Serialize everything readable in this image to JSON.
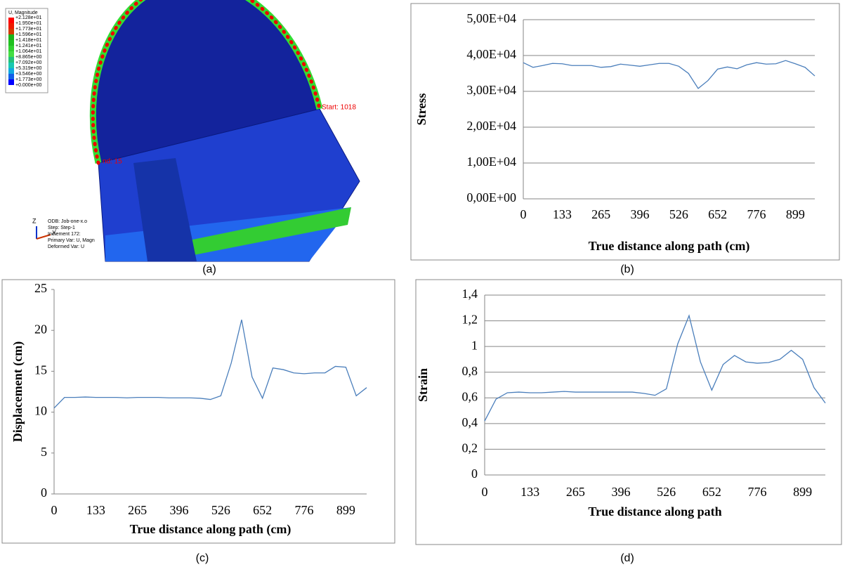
{
  "chart_data": [
    {
      "type": "line",
      "y_axis_label": "Stress",
      "x_axis_label": "True distance along path (cm)",
      "categories": [
        0,
        null,
        null,
        null,
        133,
        null,
        null,
        null,
        265,
        null,
        null,
        null,
        396,
        null,
        null,
        null,
        526,
        null,
        null,
        null,
        652,
        null,
        null,
        null,
        776,
        null,
        null,
        null,
        899,
        null,
        null
      ],
      "series": [
        {
          "color": "#4a7ebb",
          "values": [
            38000,
            36700,
            37200,
            37800,
            37700,
            37200,
            37200,
            37200,
            36700,
            36900,
            37600,
            37300,
            37000,
            37400,
            37800,
            37800,
            37000,
            35000,
            30800,
            33000,
            36200,
            36800,
            36300,
            37400,
            38000,
            37600,
            37700,
            38600,
            37700,
            36700,
            34300
          ]
        }
      ],
      "ylim": [
        0,
        50000
      ],
      "yticks": [
        {
          "value": 0,
          "label": "0,00E+00"
        },
        {
          "value": 10000,
          "label": "1,00E+04"
        },
        {
          "value": 20000,
          "label": "2,00E+04"
        },
        {
          "value": 30000,
          "label": "3,00E+04"
        },
        {
          "value": 40000,
          "label": "4,00E+04"
        },
        {
          "value": 50000,
          "label": "5,00E+04"
        }
      ],
      "grid": true
    },
    {
      "type": "line",
      "y_axis_label": "Displacement (cm)",
      "x_axis_label": "True distance along path (cm)",
      "categories": [
        0,
        null,
        null,
        null,
        133,
        null,
        null,
        null,
        265,
        null,
        null,
        null,
        396,
        null,
        null,
        null,
        526,
        null,
        null,
        null,
        652,
        null,
        null,
        null,
        776,
        null,
        null,
        null,
        899,
        null,
        null
      ],
      "series": [
        {
          "color": "#4a7ebb",
          "values": [
            10.5,
            11.8,
            11.8,
            11.85,
            11.8,
            11.8,
            11.8,
            11.75,
            11.8,
            11.8,
            11.8,
            11.75,
            11.75,
            11.75,
            11.7,
            11.55,
            12.0,
            16.0,
            21.3,
            14.3,
            11.7,
            15.4,
            15.2,
            14.8,
            14.7,
            14.8,
            14.8,
            15.6,
            15.5,
            12.0,
            13.0
          ]
        }
      ],
      "ylim": [
        0,
        25
      ],
      "yticks": [
        0,
        5,
        10,
        15,
        20,
        25
      ],
      "grid": false
    },
    {
      "type": "line",
      "y_axis_label": "Strain",
      "x_axis_label": "True distance along path",
      "categories": [
        0,
        null,
        null,
        null,
        133,
        null,
        null,
        null,
        265,
        null,
        null,
        null,
        396,
        null,
        null,
        null,
        526,
        null,
        null,
        null,
        652,
        null,
        null,
        null,
        776,
        null,
        null,
        null,
        899,
        null,
        null
      ],
      "series": [
        {
          "color": "#4a7ebb",
          "values": [
            0.42,
            0.59,
            0.64,
            0.645,
            0.64,
            0.64,
            0.645,
            0.65,
            0.645,
            0.645,
            0.645,
            0.645,
            0.645,
            0.645,
            0.635,
            0.62,
            0.67,
            1.02,
            1.24,
            0.88,
            0.66,
            0.86,
            0.93,
            0.88,
            0.87,
            0.875,
            0.9,
            0.97,
            0.9,
            0.68,
            0.56
          ]
        }
      ],
      "ylim": [
        0,
        1.4
      ],
      "yticks": [
        0,
        {
          "value": 0.2,
          "label": "0,2"
        },
        {
          "value": 0.4,
          "label": "0,4"
        },
        {
          "value": 0.6,
          "label": "0,6"
        },
        {
          "value": 0.8,
          "label": "0,8"
        },
        1,
        {
          "value": 1.2,
          "label": "1,2"
        },
        {
          "value": 1.4,
          "label": "1,4"
        }
      ],
      "grid": true
    }
  ],
  "figure_a": {
    "legend_title": "U, Magnitude",
    "legend_values": [
      "+2.128e+01",
      "+1.950e+01",
      "+1.773e+01",
      "+1.596e+01",
      "+1.418e+01",
      "+1.241e+01",
      "+1.064e+01",
      "+8.865e+00",
      "+7.092e+00",
      "+5.319e+00",
      "+3.546e+00",
      "+1.773e+00",
      "+0.000e+00"
    ],
    "path_labels": [
      "Start: 1018",
      "nd: 15"
    ],
    "info_lines": [
      "ODB: Job-one-x.o",
      "Step: Step-1",
      "Increment     172:",
      "Primary Var: U, Magn",
      "Deformed Var: U"
    ],
    "axis_labels": [
      "Z",
      "X"
    ]
  },
  "captions": [
    "(a)",
    "(b)",
    "(c)",
    "(d)"
  ]
}
